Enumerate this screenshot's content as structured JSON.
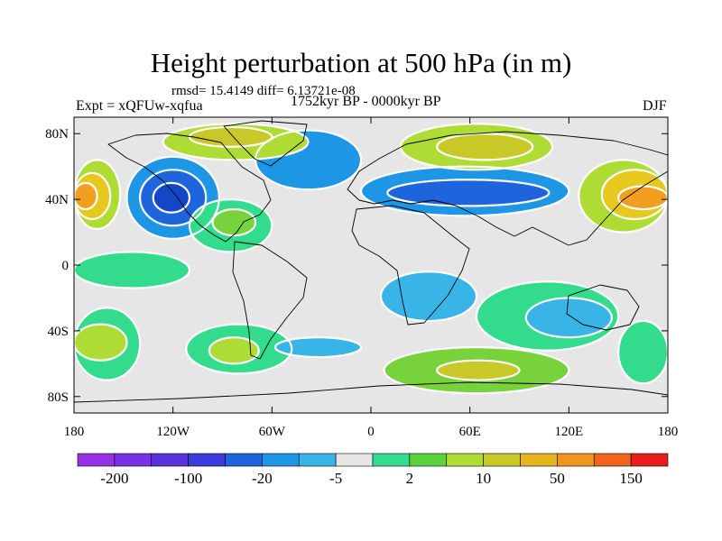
{
  "title": "Height perturbation at 500 hPa (in m)",
  "stats_line": "rmsd= 15.4149 diff= 6.13721e-08",
  "experiment_label": "Expt = xQFUw-xqfua",
  "period_label": "1752kyr BP - 0000kyr BP",
  "season_label": "DJF",
  "map": {
    "projection": "cylindrical-equidistant",
    "lon_range": [
      -180,
      180
    ],
    "lat_range": [
      -90,
      90
    ],
    "lon_ticks": [
      {
        "value": -180,
        "label": "180"
      },
      {
        "value": -120,
        "label": "120W"
      },
      {
        "value": -60,
        "label": "60W"
      },
      {
        "value": 0,
        "label": "0"
      },
      {
        "value": 60,
        "label": "60E"
      },
      {
        "value": 120,
        "label": "120E"
      },
      {
        "value": 180,
        "label": "180"
      }
    ],
    "lat_ticks": [
      {
        "value": 80,
        "label": "80N"
      },
      {
        "value": 40,
        "label": "40N"
      },
      {
        "value": 0,
        "label": "0"
      },
      {
        "value": -40,
        "label": "40S"
      },
      {
        "value": -80,
        "label": "80S"
      }
    ],
    "regions": [
      {
        "level": "neutral",
        "color": "#e6e6e6",
        "lon": [
          -180,
          180
        ],
        "lat": [
          -90,
          90
        ]
      },
      {
        "level": "10-50",
        "color": "#aedc35",
        "lon": [
          -180,
          -152
        ],
        "lat": [
          22,
          64
        ]
      },
      {
        "level": "50-100",
        "color": "#e6c81e",
        "lon": [
          -180,
          -158
        ],
        "lat": [
          28,
          56
        ]
      },
      {
        "level": "100-150",
        "color": "#f0a01e",
        "lon": [
          -180,
          -166
        ],
        "lat": [
          34,
          50
        ]
      },
      {
        "level": "-20 to -5",
        "color": "#1e96e6",
        "lon": [
          -148,
          -92
        ],
        "lat": [
          16,
          66
        ]
      },
      {
        "level": "-100 to -20",
        "color": "#1e64dc",
        "lon": [
          -140,
          -100
        ],
        "lat": [
          24,
          58
        ]
      },
      {
        "level": "-100 to -50",
        "color": "#1446c8",
        "lon": [
          -132,
          -110
        ],
        "lat": [
          32,
          50
        ]
      },
      {
        "level": "2-10",
        "color": "#32dc8c",
        "lon": [
          -110,
          -60
        ],
        "lat": [
          8,
          40
        ]
      },
      {
        "level": "10-50",
        "color": "#78d23c",
        "lon": [
          -96,
          -70
        ],
        "lat": [
          18,
          34
        ]
      },
      {
        "level": "-20 to -5",
        "color": "#1e96e6",
        "lon": [
          -70,
          -6
        ],
        "lat": [
          46,
          82
        ]
      },
      {
        "level": "-20 to -5",
        "color": "#1e96e6",
        "lon": [
          -6,
          120
        ],
        "lat": [
          30,
          60
        ]
      },
      {
        "level": "-100 to -20",
        "color": "#1e64dc",
        "lon": [
          10,
          108
        ],
        "lat": [
          36,
          52
        ]
      },
      {
        "level": "10-50",
        "color": "#aedc35",
        "lon": [
          -126,
          -38
        ],
        "lat": [
          64,
          86
        ]
      },
      {
        "level": "50-100",
        "color": "#c8c828",
        "lon": [
          -110,
          -60
        ],
        "lat": [
          72,
          84
        ]
      },
      {
        "level": "10-50",
        "color": "#aedc35",
        "lon": [
          18,
          110
        ],
        "lat": [
          58,
          86
        ]
      },
      {
        "level": "50-100",
        "color": "#c8c828",
        "lon": [
          40,
          98
        ],
        "lat": [
          64,
          80
        ]
      },
      {
        "level": "10-50",
        "color": "#aedc35",
        "lon": [
          126,
          180
        ],
        "lat": [
          20,
          64
        ]
      },
      {
        "level": "50-100",
        "color": "#e6c81e",
        "lon": [
          140,
          180
        ],
        "lat": [
          28,
          58
        ]
      },
      {
        "level": "100-150",
        "color": "#f0a01e",
        "lon": [
          150,
          180
        ],
        "lat": [
          34,
          48
        ]
      },
      {
        "level": "2-10",
        "color": "#32dc8c",
        "lon": [
          -180,
          -110
        ],
        "lat": [
          -14,
          8
        ]
      },
      {
        "level": "2-10",
        "color": "#32dc8c",
        "lon": [
          -180,
          -140
        ],
        "lat": [
          -70,
          -26
        ]
      },
      {
        "level": "10-50",
        "color": "#aedc35",
        "lon": [
          -180,
          -148
        ],
        "lat": [
          -58,
          -36
        ]
      },
      {
        "level": "2-10",
        "color": "#32dc8c",
        "lon": [
          -112,
          -48
        ],
        "lat": [
          -66,
          -36
        ]
      },
      {
        "level": "10-50",
        "color": "#aedc35",
        "lon": [
          -98,
          -68
        ],
        "lat": [
          -60,
          -44
        ]
      },
      {
        "level": "-5 to 2",
        "color": "#38b4e6",
        "lon": [
          -58,
          -6
        ],
        "lat": [
          -56,
          -44
        ]
      },
      {
        "level": "-5 to 2",
        "color": "#38b4e6",
        "lon": [
          6,
          64
        ],
        "lat": [
          -34,
          -4
        ]
      },
      {
        "level": "2-10",
        "color": "#32dc8c",
        "lon": [
          64,
          150
        ],
        "lat": [
          -52,
          -10
        ]
      },
      {
        "level": "-5 to 2",
        "color": "#38b4e6",
        "lon": [
          94,
          146
        ],
        "lat": [
          -44,
          -20
        ]
      },
      {
        "level": "10-50",
        "color": "#78d23c",
        "lon": [
          8,
          120
        ],
        "lat": [
          -78,
          -50
        ]
      },
      {
        "level": "50-100",
        "color": "#c8c828",
        "lon": [
          40,
          90
        ],
        "lat": [
          -70,
          -58
        ]
      },
      {
        "level": "2-10",
        "color": "#32dc8c",
        "lon": [
          150,
          180
        ],
        "lat": [
          -72,
          -34
        ]
      }
    ],
    "white_contour_lines": true,
    "continent_outlines": true
  },
  "colorbar": {
    "colors": [
      "#9632e6",
      "#7832e6",
      "#5a32dc",
      "#3c3cdc",
      "#1e64dc",
      "#1e96e6",
      "#38b4e6",
      "#e6e6e6",
      "#32dc8c",
      "#5ad23c",
      "#aedc35",
      "#c8c828",
      "#e6b41e",
      "#f0961e",
      "#f0641e",
      "#e61e1e"
    ],
    "labels": [
      {
        "after_box": 1,
        "text": "-200"
      },
      {
        "after_box": 3,
        "text": "-100"
      },
      {
        "after_box": 5,
        "text": "-20"
      },
      {
        "after_box": 7,
        "text": "-5"
      },
      {
        "after_box": 9,
        "text": "2"
      },
      {
        "after_box": 11,
        "text": "10"
      },
      {
        "after_box": 13,
        "text": "50"
      },
      {
        "after_box": 15,
        "text": "150"
      }
    ]
  }
}
